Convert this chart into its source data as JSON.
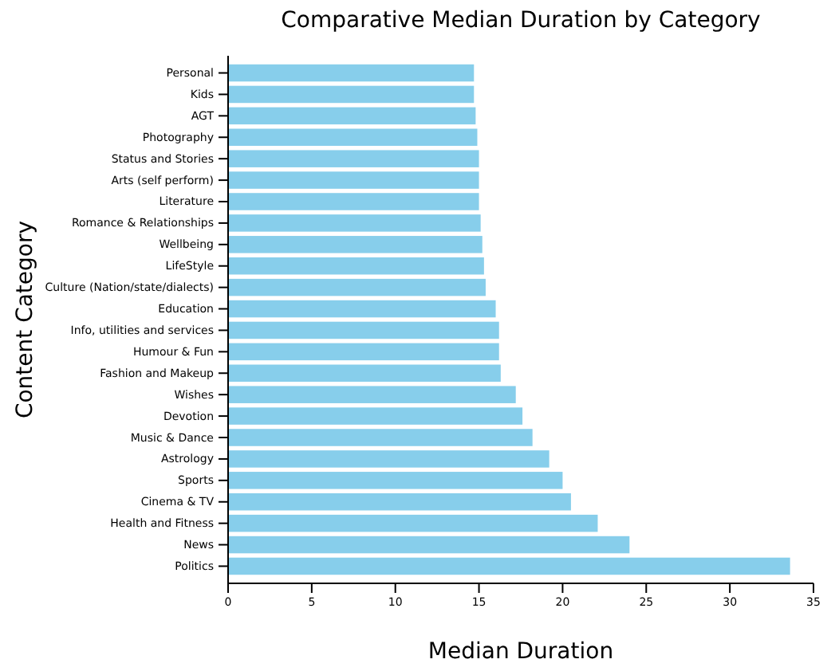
{
  "chart_data": {
    "type": "bar",
    "orientation": "horizontal",
    "title": "Comparative Median Duration by Category",
    "xlabel": "Median Duration",
    "ylabel": "Content Category",
    "categories": [
      "Personal",
      "Kids",
      "AGT",
      "Photography",
      "Status and Stories",
      "Arts (self perform)",
      "Literature",
      "Romance & Relationships",
      "Wellbeing",
      "LifeStyle",
      "Culture (Nation/state/dialects)",
      "Education",
      "Info, utilities and services",
      "Humour & Fun",
      "Fashion and Makeup",
      "Wishes",
      "Devotion",
      "Music & Dance",
      "Astrology",
      "Sports",
      "Cinema & TV",
      "Health and Fitness",
      "News",
      "Politics"
    ],
    "values": [
      14.7,
      14.7,
      14.8,
      14.9,
      15.0,
      15.0,
      15.0,
      15.1,
      15.2,
      15.3,
      15.4,
      16.0,
      16.2,
      16.2,
      16.3,
      17.2,
      17.6,
      18.2,
      19.2,
      20.0,
      20.5,
      22.1,
      24.0,
      33.6
    ],
    "color": "#87ceeb",
    "xlim": [
      0,
      35
    ],
    "xticks": [
      0,
      5,
      10,
      15,
      20,
      25,
      30,
      35
    ],
    "grid": false
  }
}
